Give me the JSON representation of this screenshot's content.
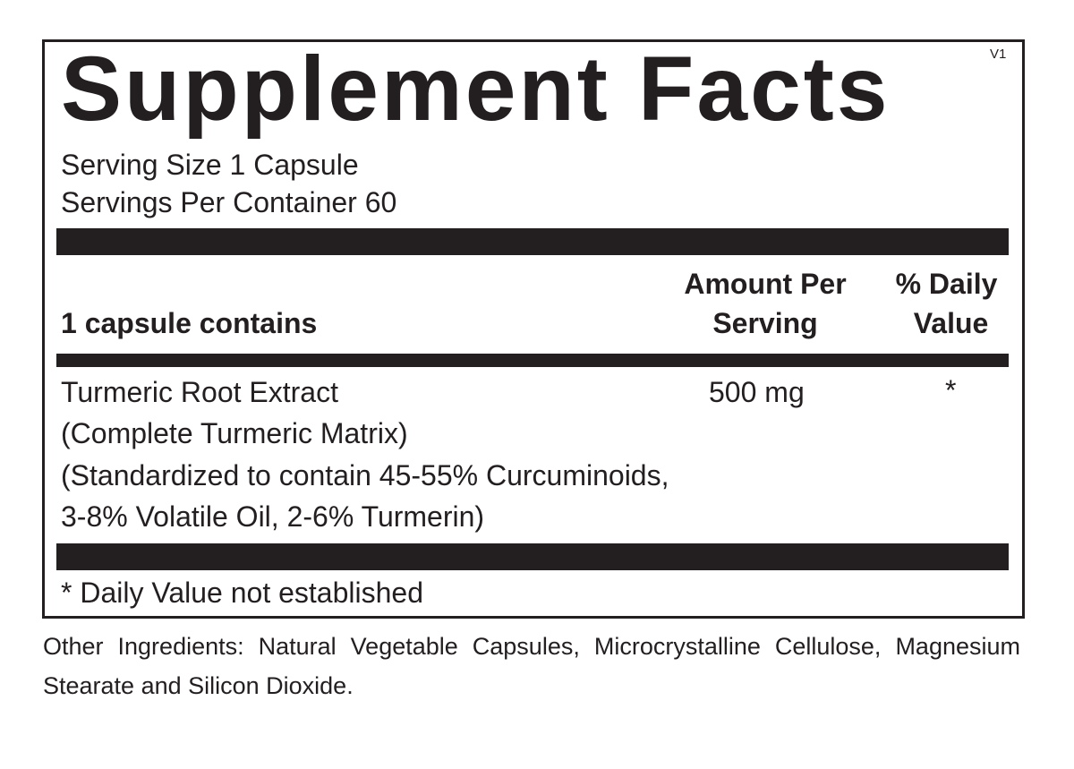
{
  "label": {
    "title": "Supplement Facts",
    "version": "V1",
    "serving_size": "Serving Size 1 Capsule",
    "servings_per_container": "Servings Per Container 60",
    "header": {
      "contains": "1 capsule contains",
      "amount_line1": "Amount Per",
      "amount_line2": "Serving",
      "dv_line1": "% Daily",
      "dv_line2": "Value"
    },
    "ingredients": [
      {
        "lines": [
          "Turmeric Root Extract",
          "(Complete Turmeric Matrix)",
          "(Standardized to contain 45-55% Curcuminoids,",
          "3-8% Volatile Oil, 2-6% Turmerin)"
        ],
        "amount": "500 mg",
        "daily_value": "*"
      }
    ],
    "footnote": "* Daily Value not established"
  },
  "other_ingredients": "Other Ingredients: Natural Vegetable Capsules, Microcrystalline Cellulose, Magnesium Stearate and Silicon Dioxide."
}
